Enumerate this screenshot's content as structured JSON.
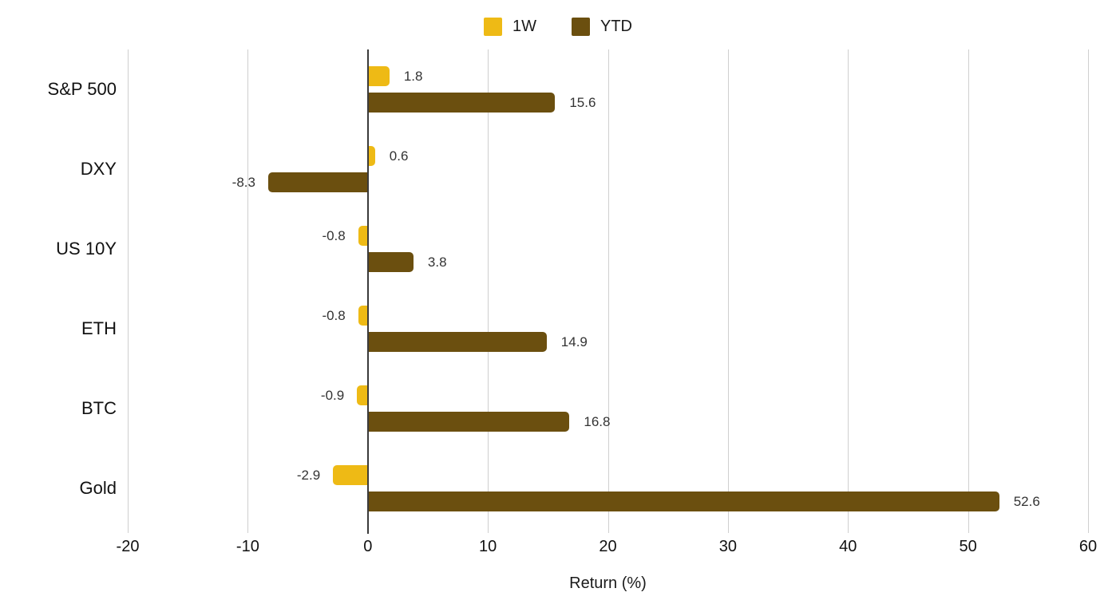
{
  "chart_data": {
    "type": "bar",
    "orientation": "horizontal",
    "title": "",
    "categories": [
      "S&P 500",
      "DXY",
      "US 10Y",
      "ETH",
      "BTC",
      "Gold"
    ],
    "series": [
      {
        "name": "1W",
        "color": "#EEBA15",
        "values": [
          1.8,
          0.6,
          -0.8,
          -0.8,
          -0.9,
          -2.9
        ]
      },
      {
        "name": "YTD",
        "color": "#6B4F0F",
        "values": [
          15.6,
          -8.3,
          3.8,
          14.9,
          16.8,
          52.6
        ]
      }
    ],
    "xlabel": "Return (%)",
    "xlim": [
      -20,
      60
    ],
    "xticks": [
      -20,
      -10,
      0,
      10,
      20,
      30,
      40,
      50,
      60
    ],
    "grid": true,
    "legend_position": "top",
    "value_labels": true,
    "colors": {
      "background": "#FFFFFF",
      "gridline": "#CFCFCF",
      "zero_line": "#3B3B3B",
      "text": "#111111",
      "value_text": "#333333"
    }
  }
}
